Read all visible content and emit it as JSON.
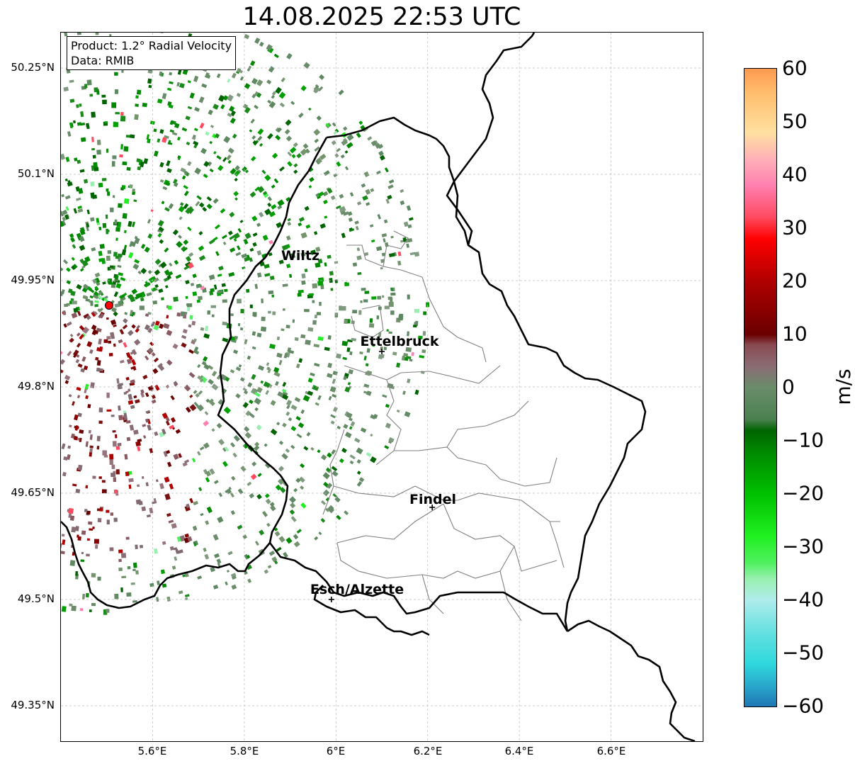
{
  "title": "14.08.2025 22:53 UTC",
  "info": {
    "product": "Product: 1.2° Radial Velocity",
    "data": "Data: RMIB"
  },
  "axes": {
    "lat_ticks": [
      "50.25°N",
      "50.1°N",
      "49.95°N",
      "49.8°N",
      "49.65°N",
      "49.5°N",
      "49.35°N"
    ],
    "lon_ticks": [
      "5.6°E",
      "5.8°E",
      "6°E",
      "6.2°E",
      "6.4°E",
      "6.6°E"
    ],
    "lat_range": [
      49.3,
      50.3
    ],
    "lon_range": [
      5.4,
      6.8
    ],
    "grid": "dashed light grey"
  },
  "cities": [
    {
      "name": "Wiltz",
      "lon": 5.93,
      "lat": 49.96,
      "marker": false
    },
    {
      "name": "Ettelbruck",
      "lon": 6.1,
      "lat": 49.85,
      "marker": true
    },
    {
      "name": "Findel",
      "lon": 6.21,
      "lat": 49.63,
      "marker": true
    },
    {
      "name": "Esch/Alzette",
      "lon": 5.99,
      "lat": 49.5,
      "marker": true
    }
  ],
  "radar_site": {
    "lon": 5.505,
    "lat": 49.915,
    "color": "#ff0000"
  },
  "colorbar": {
    "unit": "m/s",
    "min": -60,
    "max": 60,
    "tick_labels": [
      "60",
      "50",
      "40",
      "30",
      "20",
      "10",
      "0",
      "−10",
      "−20",
      "−30",
      "−40",
      "−50",
      "−60"
    ],
    "stops": [
      {
        "v": -60,
        "c": "#1f77b4"
      },
      {
        "v": -56,
        "c": "#29a8cc"
      },
      {
        "v": -52,
        "c": "#2ed8dc"
      },
      {
        "v": -46,
        "c": "#66e0e0"
      },
      {
        "v": -40,
        "c": "#b0ecec"
      },
      {
        "v": -36,
        "c": "#98f0b0"
      },
      {
        "v": -33,
        "c": "#50f060"
      },
      {
        "v": -28,
        "c": "#20f020"
      },
      {
        "v": -20,
        "c": "#00c000"
      },
      {
        "v": -12,
        "c": "#008800"
      },
      {
        "v": -8,
        "c": "#006400"
      },
      {
        "v": -6,
        "c": "#4a8050"
      },
      {
        "v": 0,
        "c": "#6a8c6a"
      },
      {
        "v": 4,
        "c": "#8a6c74"
      },
      {
        "v": 8,
        "c": "#8a4a52"
      },
      {
        "v": 10,
        "c": "#6a0000"
      },
      {
        "v": 20,
        "c": "#b00000"
      },
      {
        "v": 28,
        "c": "#ff0000"
      },
      {
        "v": 32,
        "c": "#ff4a60"
      },
      {
        "v": 38,
        "c": "#ff80b0"
      },
      {
        "v": 43,
        "c": "#ffb0b8"
      },
      {
        "v": 48,
        "c": "#ffe0a0"
      },
      {
        "v": 55,
        "c": "#ffc070"
      },
      {
        "v": 60,
        "c": "#ff9a50"
      }
    ]
  },
  "colors": {
    "border": "#000000",
    "canton": "#808080",
    "grid": "#bbbbbb"
  }
}
